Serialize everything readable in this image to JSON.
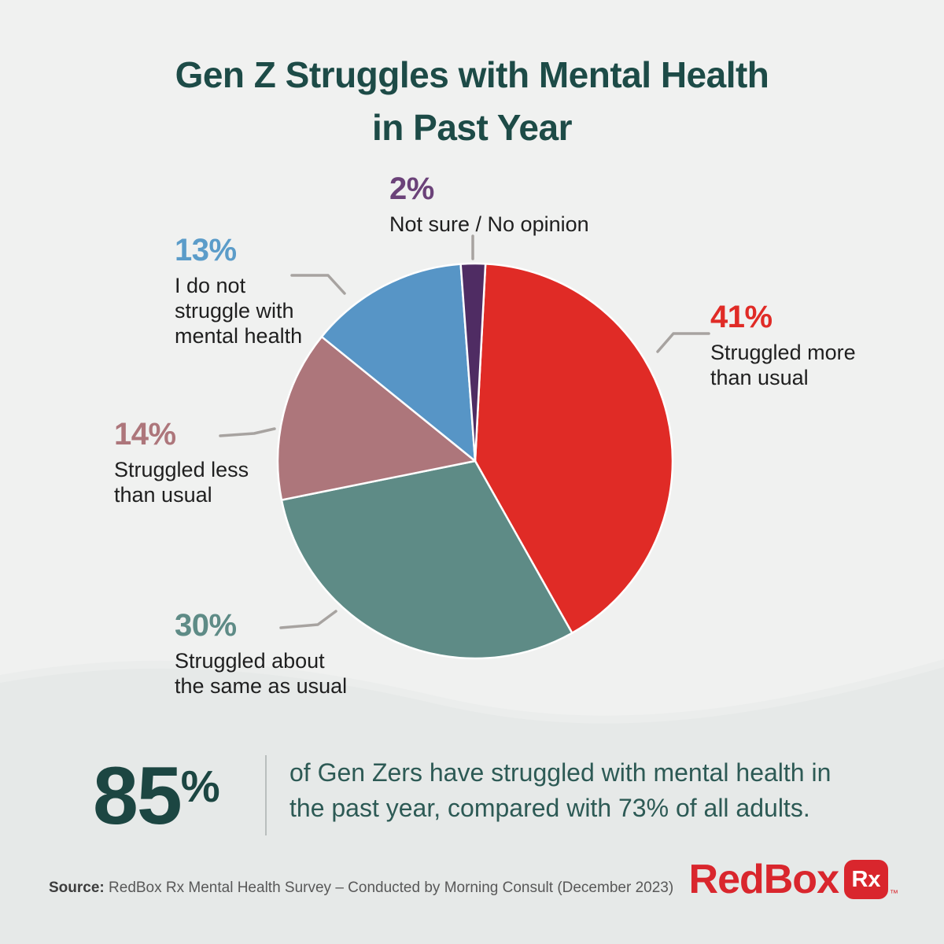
{
  "title": {
    "line1": "Gen Z Struggles with Mental Health",
    "line2": "in Past Year"
  },
  "chart_data": {
    "type": "pie",
    "title": "Gen Z Struggles with Mental Health in Past Year",
    "direction": "clockwise",
    "start_angle_deg": 3,
    "slices": [
      {
        "label": "Struggled more than usual",
        "value": 41,
        "pct_label": "41%",
        "color": "#e02b26",
        "label_color": "#e02b26",
        "label_lines": [
          "Struggled more",
          "than usual"
        ]
      },
      {
        "label": "Struggled about the same as usual",
        "value": 30,
        "pct_label": "30%",
        "color": "#5e8b86",
        "label_color": "#5e8b86",
        "label_lines": [
          "Struggled about",
          "the same as usual"
        ]
      },
      {
        "label": "Struggled less than usual",
        "value": 14,
        "pct_label": "14%",
        "color": "#ad767b",
        "label_color": "#ad767b",
        "label_lines": [
          "Struggled less",
          "than usual"
        ]
      },
      {
        "label": "I do not struggle with mental health",
        "value": 13,
        "pct_label": "13%",
        "color": "#5795c6",
        "label_color": "#5b9cc9",
        "label_lines": [
          "I do not",
          "struggle with",
          "mental health"
        ]
      },
      {
        "label": "Not sure / No opinion",
        "value": 2,
        "pct_label": "2%",
        "color": "#4f2c63",
        "label_color": "#6b4279",
        "label_lines": [
          "Not sure / No opinion"
        ]
      }
    ]
  },
  "stat": {
    "value": "85",
    "percent_sign": "%",
    "text": "of Gen Zers have struggled with mental health in the past year, compared with 73% of all adults."
  },
  "source": {
    "prefix": "Source:",
    "text": " RedBox Rx Mental Health Survey – Conducted by Morning Consult (December 2023)"
  },
  "logo": {
    "wordmark": "RedBox",
    "box_label": "Rx",
    "trademark": "™"
  },
  "colors": {
    "background_top": "#f0f1f0",
    "background_wave": "#e6e9e8",
    "title_text": "#1d4b47",
    "body_text": "#1f1f1f",
    "stat_text": "#2d5a55",
    "leader_line": "#a7a3a0",
    "brand_red": "#d9262d"
  }
}
